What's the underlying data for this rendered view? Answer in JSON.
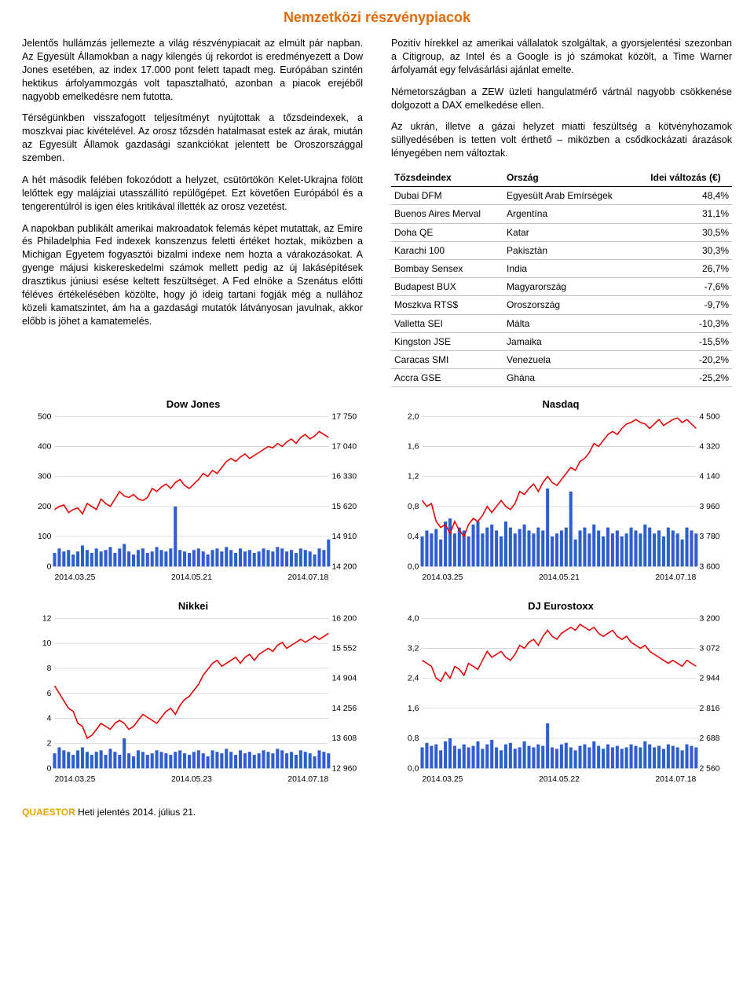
{
  "page_title": "Nemzetközi részvénypiacok",
  "left_paragraphs": [
    "Jelentős hullámzás jellemezte a világ részvénypiacait az elmúlt pár napban. Az Egyesült Államokban a nagy kilengés új rekordot is eredményezett a Dow Jones esetében, az index 17.000 pont felett tapadt meg. Európában szintén hektikus árfolyammozgás volt tapasztalható, azonban a piacok erejéből nagyobb emelkedésre nem futotta.",
    "Térségünkben visszafogott teljesítményt nyújtottak a tőzsdeindexek, a moszkvai piac kivételével. Az orosz tőzsdén hatalmasat estek az árak, miután az Egyesült Államok gazdasági szankciókat jelentett be Oroszországgal szemben.",
    "A hét második felében fokozódott a helyzet, csütörtökön Kelet-Ukrajna fölött lelőttek egy malájziai utasszállító repülőgépet. Ezt követően Európából és a tengerentúlról is igen éles kritikával illették az orosz vezetést.",
    "A napokban publikált amerikai makroadatok felemás képet mutattak, az Emire és Philadelphia Fed indexek konszenzus feletti értéket hoztak, miközben a Michigan Egyetem fogyasztói bizalmi indexe nem hozta a várakozásokat. A gyenge májusi kiskereskedelmi számok mellett pedig az új lakásépítések drasztikus júniusi esése keltett feszültséget. A Fed elnöke a Szenátus előtti féléves értékelésében közölte, hogy jó ideig tartani fogják még a nullához közeli kamatszintet, ám ha a gazdasági mutatók látványosan javulnak, akkor előbb is jöhet a kamatemelés."
  ],
  "right_paragraphs": [
    "Pozitív hírekkel az amerikai vállalatok szolgáltak, a gyorsjelentési szezonban a Citigroup, az Intel és a Google is jó számokat közölt, a Time Warner árfolyamát egy felvásárlási ajánlat emelte.",
    "Németországban a ZEW üzleti hangulatmérő vártnál nagyobb csökkenése dolgozott a DAX emelkedése ellen.",
    "Az ukrán, illetve a gázai helyzet miatti feszültség a kötvényhozamok süllyedésében is tetten volt érthető – miközben a csődkockázati árazások lényegében nem változtak."
  ],
  "table": {
    "headers": [
      "Tőzsdeindex",
      "Ország",
      "Idei változás (€)"
    ],
    "rows": [
      [
        "Dubai DFM",
        "Egyesült Arab Emírségek",
        "48,4%"
      ],
      [
        "Buenos Aires Merval",
        "Argentína",
        "31,1%"
      ],
      [
        "Doha QE",
        "Katar",
        "30,5%"
      ],
      [
        "Karachi 100",
        "Pakisztán",
        "30,3%"
      ],
      [
        "Bombay Sensex",
        "India",
        "26,7%"
      ],
      [
        "Budapest BUX",
        "Magyarország",
        "-7,6%"
      ],
      [
        "Moszkva RTS$",
        "Oroszország",
        "-9,7%"
      ],
      [
        "Valletta SEI",
        "Málta",
        "-10,3%"
      ],
      [
        "Kingston JSE",
        "Jamaika",
        "-15,5%"
      ],
      [
        "Caracas SMI",
        "Venezuela",
        "-20,2%"
      ],
      [
        "Accra GSE",
        "Ghána",
        "-25,2%"
      ]
    ]
  },
  "charts": [
    {
      "title": "Dow Jones",
      "left_ticks": [
        "500",
        "400",
        "300",
        "200",
        "100",
        "0"
      ],
      "right_ticks": [
        "17 750",
        "17 040",
        "16 330",
        "15 620",
        "14 910",
        "14 200"
      ],
      "x_labels": [
        "2014.03.25",
        "2014.05.21",
        "2014.07.18"
      ],
      "line_color": "#e60000",
      "bar_color": "#2f5ed0",
      "line": [
        0.38,
        0.4,
        0.41,
        0.36,
        0.38,
        0.39,
        0.35,
        0.42,
        0.4,
        0.38,
        0.45,
        0.42,
        0.4,
        0.45,
        0.5,
        0.47,
        0.46,
        0.48,
        0.45,
        0.44,
        0.46,
        0.52,
        0.5,
        0.53,
        0.55,
        0.52,
        0.56,
        0.58,
        0.54,
        0.52,
        0.55,
        0.58,
        0.62,
        0.6,
        0.64,
        0.62,
        0.66,
        0.7,
        0.72,
        0.7,
        0.73,
        0.75,
        0.72,
        0.74,
        0.76,
        0.78,
        0.8,
        0.79,
        0.82,
        0.8,
        0.83,
        0.85,
        0.82,
        0.86,
        0.88,
        0.85,
        0.87,
        0.9,
        0.88,
        0.86
      ],
      "bars": [
        0.09,
        0.12,
        0.1,
        0.11,
        0.08,
        0.1,
        0.14,
        0.11,
        0.09,
        0.12,
        0.1,
        0.11,
        0.13,
        0.09,
        0.12,
        0.15,
        0.1,
        0.08,
        0.11,
        0.12,
        0.09,
        0.1,
        0.13,
        0.11,
        0.1,
        0.12,
        0.4,
        0.11,
        0.1,
        0.09,
        0.11,
        0.12,
        0.1,
        0.08,
        0.11,
        0.12,
        0.1,
        0.13,
        0.11,
        0.09,
        0.12,
        0.1,
        0.11,
        0.09,
        0.1,
        0.12,
        0.11,
        0.1,
        0.13,
        0.12,
        0.1,
        0.11,
        0.09,
        0.12,
        0.11,
        0.1,
        0.08,
        0.12,
        0.11,
        0.18
      ]
    },
    {
      "title": "Nasdaq",
      "left_ticks": [
        "2,0",
        "1,6",
        "1,2",
        "0,8",
        "0,4",
        "0,0"
      ],
      "right_ticks": [
        "4 500",
        "4 320",
        "4 140",
        "3 960",
        "3 780",
        "3 600"
      ],
      "x_labels": [
        "2014.03.25",
        "2014.05.21",
        "2014.07.18"
      ],
      "line_color": "#e60000",
      "bar_color": "#2f5ed0",
      "line": [
        0.44,
        0.4,
        0.42,
        0.3,
        0.26,
        0.28,
        0.22,
        0.3,
        0.24,
        0.2,
        0.28,
        0.32,
        0.3,
        0.34,
        0.4,
        0.36,
        0.4,
        0.44,
        0.4,
        0.38,
        0.42,
        0.5,
        0.48,
        0.52,
        0.55,
        0.5,
        0.56,
        0.6,
        0.56,
        0.54,
        0.58,
        0.62,
        0.66,
        0.64,
        0.7,
        0.72,
        0.76,
        0.82,
        0.8,
        0.84,
        0.88,
        0.9,
        0.88,
        0.92,
        0.95,
        0.96,
        0.98,
        0.96,
        0.95,
        0.92,
        0.95,
        0.98,
        0.94,
        0.96,
        0.98,
        0.99,
        0.96,
        0.98,
        0.95,
        0.92
      ],
      "bars": [
        0.2,
        0.24,
        0.22,
        0.25,
        0.18,
        0.3,
        0.32,
        0.22,
        0.26,
        0.24,
        0.2,
        0.28,
        0.3,
        0.22,
        0.26,
        0.28,
        0.24,
        0.2,
        0.3,
        0.26,
        0.22,
        0.25,
        0.28,
        0.24,
        0.22,
        0.26,
        0.24,
        0.52,
        0.2,
        0.22,
        0.24,
        0.26,
        0.5,
        0.18,
        0.24,
        0.26,
        0.22,
        0.28,
        0.24,
        0.2,
        0.26,
        0.22,
        0.24,
        0.2,
        0.22,
        0.26,
        0.24,
        0.22,
        0.28,
        0.26,
        0.22,
        0.24,
        0.2,
        0.26,
        0.24,
        0.22,
        0.18,
        0.26,
        0.24,
        0.22
      ]
    },
    {
      "title": "Nikkei",
      "left_ticks": [
        "12",
        "10",
        "8",
        "6",
        "4",
        "2",
        "0"
      ],
      "right_ticks": [
        "16 200",
        "15 552",
        "14 904",
        "14 256",
        "13 608",
        "12 960"
      ],
      "x_labels": [
        "2014.03.25",
        "2014.05.23",
        "2014.07.18"
      ],
      "line_color": "#e60000",
      "bar_color": "#2f5ed0",
      "line": [
        0.55,
        0.5,
        0.45,
        0.4,
        0.38,
        0.3,
        0.28,
        0.2,
        0.22,
        0.26,
        0.3,
        0.28,
        0.26,
        0.3,
        0.32,
        0.3,
        0.26,
        0.28,
        0.32,
        0.36,
        0.34,
        0.32,
        0.3,
        0.34,
        0.38,
        0.4,
        0.36,
        0.42,
        0.46,
        0.48,
        0.52,
        0.56,
        0.62,
        0.66,
        0.7,
        0.72,
        0.68,
        0.7,
        0.72,
        0.74,
        0.7,
        0.74,
        0.76,
        0.72,
        0.76,
        0.78,
        0.8,
        0.78,
        0.82,
        0.84,
        0.8,
        0.82,
        0.84,
        0.86,
        0.84,
        0.86,
        0.88,
        0.86,
        0.88,
        0.9
      ],
      "bars": [
        0.1,
        0.14,
        0.12,
        0.11,
        0.09,
        0.12,
        0.14,
        0.11,
        0.09,
        0.11,
        0.12,
        0.09,
        0.13,
        0.11,
        0.09,
        0.2,
        0.1,
        0.08,
        0.12,
        0.11,
        0.09,
        0.1,
        0.12,
        0.11,
        0.1,
        0.09,
        0.11,
        0.12,
        0.1,
        0.09,
        0.11,
        0.12,
        0.1,
        0.08,
        0.12,
        0.11,
        0.1,
        0.13,
        0.11,
        0.09,
        0.12,
        0.1,
        0.11,
        0.09,
        0.1,
        0.12,
        0.11,
        0.1,
        0.13,
        0.12,
        0.1,
        0.11,
        0.09,
        0.12,
        0.11,
        0.1,
        0.08,
        0.12,
        0.11,
        0.1
      ]
    },
    {
      "title": "DJ Eurostoxx",
      "left_ticks": [
        "4,0",
        "3,2",
        "2,4",
        "1,6",
        "0,8",
        "0,0"
      ],
      "right_ticks": [
        "3 200",
        "3 072",
        "2 944",
        "2 816",
        "2 688",
        "2 560"
      ],
      "x_labels": [
        "2014.03.25",
        "2014.05.22",
        "2014.07.18"
      ],
      "line_color": "#e60000",
      "bar_color": "#2f5ed0",
      "line": [
        0.72,
        0.7,
        0.68,
        0.6,
        0.58,
        0.64,
        0.6,
        0.68,
        0.66,
        0.62,
        0.7,
        0.68,
        0.66,
        0.72,
        0.78,
        0.74,
        0.76,
        0.78,
        0.74,
        0.72,
        0.76,
        0.82,
        0.8,
        0.84,
        0.86,
        0.82,
        0.88,
        0.92,
        0.88,
        0.86,
        0.9,
        0.92,
        0.94,
        0.92,
        0.96,
        0.94,
        0.92,
        0.94,
        0.9,
        0.88,
        0.9,
        0.92,
        0.88,
        0.86,
        0.88,
        0.84,
        0.82,
        0.8,
        0.82,
        0.78,
        0.76,
        0.74,
        0.72,
        0.7,
        0.72,
        0.7,
        0.68,
        0.72,
        0.7,
        0.68
      ],
      "bars": [
        0.14,
        0.17,
        0.15,
        0.16,
        0.12,
        0.18,
        0.2,
        0.15,
        0.13,
        0.16,
        0.14,
        0.15,
        0.18,
        0.13,
        0.16,
        0.19,
        0.14,
        0.12,
        0.16,
        0.17,
        0.13,
        0.14,
        0.18,
        0.15,
        0.14,
        0.16,
        0.15,
        0.3,
        0.14,
        0.13,
        0.16,
        0.17,
        0.14,
        0.12,
        0.15,
        0.16,
        0.14,
        0.18,
        0.15,
        0.13,
        0.16,
        0.14,
        0.15,
        0.13,
        0.14,
        0.16,
        0.15,
        0.14,
        0.18,
        0.16,
        0.14,
        0.15,
        0.13,
        0.16,
        0.15,
        0.14,
        0.12,
        0.16,
        0.15,
        0.14
      ]
    }
  ],
  "footer": {
    "brand": "QUAESTOR",
    "rest": " Heti jelentés 2014. július 21."
  },
  "colors": {
    "title": "#e36c0a",
    "line": "#e60000",
    "bar": "#2f5ed0",
    "grid": "#bfbfbf",
    "brand": "#e6a500"
  }
}
